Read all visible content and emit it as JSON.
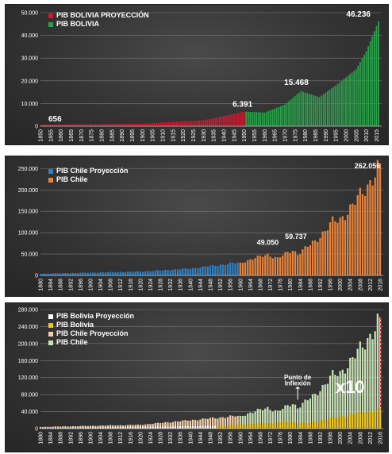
{
  "charts": [
    {
      "legend": [
        {
          "label": "PIB BOLIVIA PROYECCIÓN",
          "color": "#e0112b"
        },
        {
          "label": "PIB BOLIVIA",
          "color": "#2aa14a"
        }
      ],
      "yticks": [
        "50.000",
        "40.000",
        "30.000",
        "20.000",
        "10.000",
        "0"
      ],
      "xticks": [
        "1850",
        "1855",
        "1860",
        "1865",
        "1870",
        "1875",
        "1880",
        "1885",
        "1890",
        "1895",
        "1900",
        "1905",
        "1910",
        "1915",
        "1920",
        "1925",
        "1930",
        "1935",
        "1940",
        "1945",
        "1950",
        "1955",
        "1960",
        "1965",
        "1970",
        "1975",
        "1980",
        "1985",
        "1990",
        "1995",
        "2000",
        "2005",
        "2010",
        "2015"
      ],
      "annotations": [
        "656",
        "6.391",
        "15.468",
        "46.236"
      ]
    },
    {
      "legend": [
        {
          "label": "PIB Chile Proyección",
          "color": "#2e7fc1"
        },
        {
          "label": "PIB Chile",
          "color": "#e8833a"
        }
      ],
      "yticks": [
        "250.000",
        "200.000",
        "150.000",
        "100.000",
        "50.000",
        "0"
      ],
      "xticks": [
        "1880",
        "1884",
        "1888",
        "1892",
        "1896",
        "1900",
        "1904",
        "1908",
        "1912",
        "1916",
        "1920",
        "1924",
        "1928",
        "1932",
        "1936",
        "1940",
        "1944",
        "1948",
        "1952",
        "1956",
        "1960",
        "1964",
        "1968",
        "1972",
        "1976",
        "1980",
        "1984",
        "1988",
        "1992",
        "1996",
        "2000",
        "2004",
        "2008",
        "2012",
        "2016"
      ],
      "annotations": [
        "49.050",
        "59.737",
        "262.056"
      ]
    },
    {
      "legend": [
        {
          "label": "PIB Bolivia Proyección",
          "color": "#ffffff"
        },
        {
          "label": "PIB Bolivia",
          "color": "#f2c60f"
        },
        {
          "label": "PIB Chile Proyección",
          "color": "#f5cfa8"
        },
        {
          "label": "PIB Chile",
          "color": "#c9e3b6"
        }
      ],
      "yticks": [
        "280.000",
        "240.000",
        "200.000",
        "160.000",
        "120.000",
        "80.000",
        "40.000",
        "0"
      ],
      "xticks": [
        "1880",
        "1884",
        "1888",
        "1892",
        "1896",
        "1900",
        "1904",
        "1908",
        "1912",
        "1916",
        "1920",
        "1924",
        "1928",
        "1932",
        "1936",
        "1940",
        "1944",
        "1948",
        "1952",
        "1956",
        "1960",
        "1964",
        "1968",
        "1972",
        "1976",
        "1980",
        "1984",
        "1988",
        "1992",
        "1996",
        "2000",
        "2004",
        "2008",
        "2012",
        "2016"
      ],
      "annotations": [
        "Punto de",
        "Inflexión",
        "x10"
      ]
    }
  ],
  "chart_data": [
    {
      "type": "bar",
      "ylim": [
        0,
        50000
      ],
      "series": [
        {
          "name": "PIB BOLIVIA PROYECCIÓN",
          "color": "#e0112b",
          "x_range": [
            1850,
            1950
          ],
          "points": [
            [
              1850,
              656
            ],
            [
              1900,
              1100
            ],
            [
              1930,
              2600
            ],
            [
              1950,
              6391
            ]
          ]
        },
        {
          "name": "PIB BOLIVIA",
          "color": "#2aa14a",
          "x_range": [
            1951,
            2016
          ],
          "points": [
            [
              1951,
              6391
            ],
            [
              1960,
              6000
            ],
            [
              1970,
              9500
            ],
            [
              1978,
              15468
            ],
            [
              1987,
              12800
            ],
            [
              1995,
              18000
            ],
            [
              2000,
              21500
            ],
            [
              2005,
              25000
            ],
            [
              2010,
              33000
            ],
            [
              2016,
              46236
            ]
          ]
        }
      ],
      "annotations": [
        {
          "text": "656",
          "x": 1850,
          "y": 656
        },
        {
          "text": "6.391",
          "x": 1950,
          "y": 6391
        },
        {
          "text": "15.468",
          "x": 1978,
          "y": 15468
        },
        {
          "text": "46.236",
          "x": 2016,
          "y": 46236
        }
      ]
    },
    {
      "type": "bar",
      "ylim": [
        0,
        260000
      ],
      "series": [
        {
          "name": "PIB Chile Proyección",
          "color": "#2e7fc1",
          "x_range": [
            1880,
            1959
          ],
          "points": [
            [
              1880,
              4000
            ],
            [
              1900,
              6500
            ],
            [
              1920,
              9000
            ],
            [
              1940,
              16000
            ],
            [
              1959,
              30000
            ]
          ]
        },
        {
          "name": "PIB Chile",
          "color": "#e8833a",
          "x_range": [
            1960,
            2016
          ],
          "points": [
            [
              1960,
              30000
            ],
            [
              1971,
              49050
            ],
            [
              1975,
              40000
            ],
            [
              1981,
              59737
            ],
            [
              1983,
              50000
            ],
            [
              1990,
              80000
            ],
            [
              1997,
              125000
            ],
            [
              2000,
              130000
            ],
            [
              2005,
              165000
            ],
            [
              2010,
              200000
            ],
            [
              2016,
              262056
            ]
          ]
        }
      ],
      "annotations": [
        {
          "text": "49.050",
          "x": 1971,
          "y": 49050
        },
        {
          "text": "59.737",
          "x": 1981,
          "y": 59737
        },
        {
          "text": "262.056",
          "x": 2016,
          "y": 262056
        }
      ]
    },
    {
      "type": "bar",
      "ylim": [
        0,
        280000
      ],
      "series": [
        {
          "name": "PIB Bolivia Proyección",
          "color": "#ffffff",
          "x_range": [
            1880,
            1950
          ],
          "points": [
            [
              1880,
              1500
            ],
            [
              1950,
              6391
            ]
          ]
        },
        {
          "name": "PIB Bolivia",
          "color": "#f2c60f",
          "x_range": [
            1951,
            2016
          ],
          "points": [
            [
              1951,
              6391
            ],
            [
              1978,
              15468
            ],
            [
              1987,
              12800
            ],
            [
              2016,
              46236
            ]
          ]
        },
        {
          "name": "PIB Chile Proyección",
          "color": "#f5cfa8",
          "x_range": [
            1880,
            1959
          ],
          "points": [
            [
              1880,
              4000
            ],
            [
              1920,
              9000
            ],
            [
              1959,
              30000
            ]
          ]
        },
        {
          "name": "PIB Chile",
          "color": "#c9e3b6",
          "x_range": [
            1960,
            2016
          ],
          "points": [
            [
              1960,
              30000
            ],
            [
              1971,
              49050
            ],
            [
              1975,
              40000
            ],
            [
              1981,
              59737
            ],
            [
              1983,
              50000
            ],
            [
              1990,
              80000
            ],
            [
              1997,
              125000
            ],
            [
              2000,
              130000
            ],
            [
              2005,
              165000
            ],
            [
              2010,
              200000
            ],
            [
              2016,
              262056
            ]
          ]
        }
      ],
      "annotations": [
        {
          "text": "Punto de Inflexión",
          "x": 1983,
          "y": 55000
        },
        {
          "text": "x10",
          "x": 2005
        }
      ]
    }
  ]
}
